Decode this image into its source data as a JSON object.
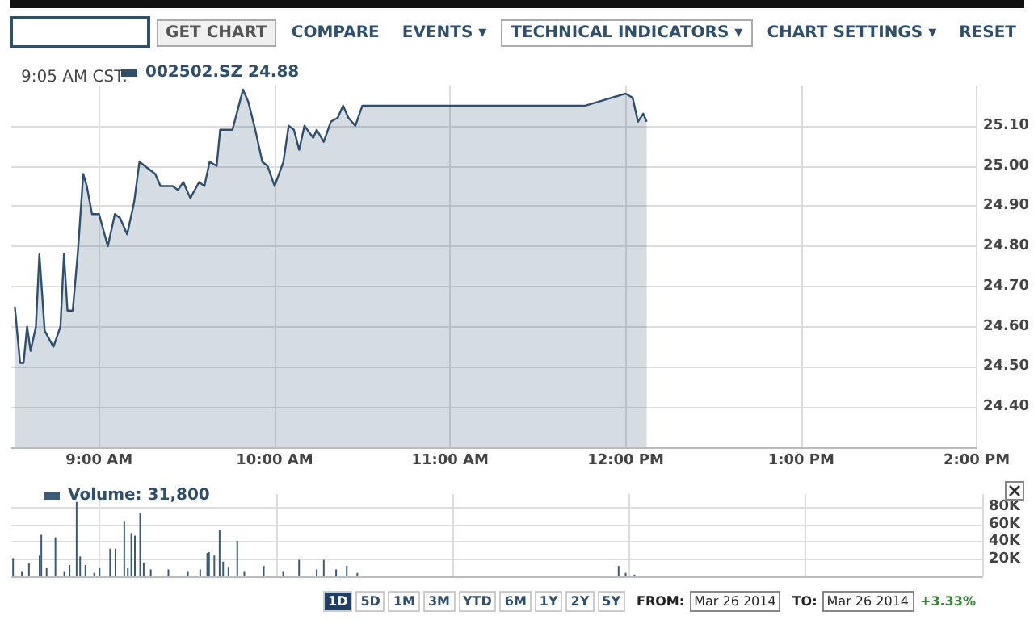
{
  "chart_data": [
    {
      "type": "area",
      "subtitle": "9:05 AM CST:",
      "legend": "top left",
      "grid": true,
      "annotations": [
        "GET CHART",
        "COMPARE",
        "EVENTS ▾",
        "TECHNICAL INDICATORS ▾",
        "CHART SETTINGS ▾",
        "RESET"
      ],
      "xlim": [
        8.5,
        14
      ],
      "xticks": [
        {
          "value": 9,
          "label": "9:00 AM"
        },
        {
          "value": 10,
          "label": "10:00 AM"
        },
        {
          "value": 11,
          "label": "11:00 AM"
        },
        {
          "value": 12,
          "label": "12:00 PM"
        },
        {
          "value": 13,
          "label": "1:00 PM"
        },
        {
          "value": 14,
          "label": "2:00 PM"
        }
      ],
      "ylim": [
        24.3,
        25.2
      ],
      "yticks": [
        {
          "value": 24.4,
          "label": "24.40"
        },
        {
          "value": 24.5,
          "label": "24.50"
        },
        {
          "value": 24.6,
          "label": "24.60"
        },
        {
          "value": 24.7,
          "label": "24.70"
        },
        {
          "value": 24.8,
          "label": "24.80"
        },
        {
          "value": 24.9,
          "label": "24.90"
        },
        {
          "value": 25.0,
          "label": "25.00"
        },
        {
          "value": 25.1,
          "label": "25.10"
        }
      ],
      "series": [
        {
          "name": "002502.SZ 24.88",
          "color": "#2f4f6f",
          "x": [
            8.52,
            8.55,
            8.57,
            8.59,
            8.61,
            8.64,
            8.66,
            8.69,
            8.74,
            8.78,
            8.8,
            8.82,
            8.85,
            8.88,
            8.91,
            8.93,
            8.96,
            9.0,
            9.05,
            9.09,
            9.12,
            9.16,
            9.2,
            9.23,
            9.26,
            9.32,
            9.35,
            9.42,
            9.45,
            9.48,
            9.52,
            9.57,
            9.6,
            9.63,
            9.67,
            9.69,
            9.76,
            9.79,
            9.82,
            9.85,
            9.89,
            9.93,
            9.96,
            10.0,
            10.05,
            10.08,
            10.11,
            10.14,
            10.17,
            10.22,
            10.24,
            10.28,
            10.32,
            10.36,
            10.39,
            10.42,
            10.46,
            10.5,
            11.77,
            12.0,
            12.04,
            12.07,
            12.1,
            12.12
          ],
          "values": [
            24.65,
            24.51,
            24.51,
            24.6,
            24.54,
            24.6,
            24.78,
            24.59,
            24.55,
            24.6,
            24.78,
            24.64,
            24.64,
            24.79,
            24.98,
            24.95,
            24.88,
            24.88,
            24.8,
            24.88,
            24.87,
            24.83,
            24.91,
            25.01,
            25.0,
            24.98,
            24.95,
            24.95,
            24.94,
            24.96,
            24.92,
            24.96,
            24.95,
            25.01,
            25.0,
            25.09,
            25.09,
            25.14,
            25.19,
            25.16,
            25.09,
            25.01,
            25.0,
            24.95,
            25.01,
            25.1,
            25.09,
            25.04,
            25.1,
            25.07,
            25.09,
            25.06,
            25.11,
            25.12,
            25.15,
            25.12,
            25.1,
            25.15,
            25.15,
            25.18,
            25.17,
            25.11,
            25.13,
            25.11
          ]
        }
      ]
    },
    {
      "type": "bar",
      "legend": "top left",
      "grid": true,
      "tick_labels": "y",
      "annotations": [
        "1D",
        "5D",
        "1M",
        "3M",
        "YTD",
        "6M",
        "1Y",
        "2Y",
        "5Y",
        "FROM:",
        "Mar 26 2014",
        "TO:",
        "Mar 26 2014",
        "+3.33%"
      ],
      "xlim": [
        8.5,
        14
      ],
      "xticks": [
        {
          "value": 9,
          "label": null
        },
        {
          "value": 10,
          "label": null
        },
        {
          "value": 11,
          "label": null
        },
        {
          "value": 12,
          "label": null
        },
        {
          "value": 13,
          "label": null
        },
        {
          "value": 14,
          "label": null
        }
      ],
      "ylim": [
        0,
        95000
      ],
      "yticks": [
        {
          "value": 20000,
          "label": "20K"
        },
        {
          "value": 40000,
          "label": "40K"
        },
        {
          "value": 60000,
          "label": "60K"
        },
        {
          "value": 80000,
          "label": "80K"
        }
      ],
      "series": [
        {
          "name": "Volume: 31,800",
          "color": "#3b5a78",
          "x": [
            8.51,
            8.56,
            8.6,
            8.66,
            8.67,
            8.7,
            8.75,
            8.8,
            8.83,
            8.87,
            8.89,
            8.92,
            8.97,
            9.0,
            9.06,
            9.09,
            9.14,
            9.16,
            9.18,
            9.2,
            9.23,
            9.25,
            9.29,
            9.39,
            9.5,
            9.57,
            9.61,
            9.62,
            9.65,
            9.68,
            9.7,
            9.73,
            9.78,
            9.82,
            9.93,
            10.04,
            10.13,
            10.23,
            10.27,
            10.34,
            10.4,
            10.46,
            11.94,
            11.98,
            12.03
          ],
          "values": [
            21000,
            6000,
            15000,
            24000,
            48000,
            10000,
            45000,
            6000,
            13000,
            86000,
            23000,
            13000,
            4000,
            10000,
            32000,
            32000,
            64000,
            10000,
            50000,
            47000,
            73000,
            16000,
            8000,
            8000,
            6000,
            8000,
            27000,
            28000,
            24000,
            54000,
            17000,
            11000,
            41000,
            6000,
            12000,
            6000,
            19000,
            8000,
            19000,
            8000,
            12000,
            4000,
            12000,
            4000,
            2000
          ]
        }
      ]
    }
  ]
}
